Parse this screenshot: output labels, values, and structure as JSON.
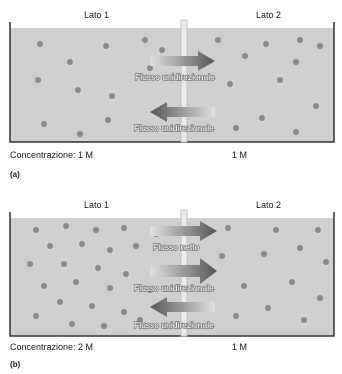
{
  "panels": [
    {
      "tag": "(a)",
      "left_label": "Lato 1",
      "right_label": "Lato 2",
      "concentration_left": "Concentrazione: 1 M",
      "concentration_right": "1 M",
      "arrows": [
        {
          "direction": "right",
          "label": "Flusso unidirezionale",
          "level": "upper"
        },
        {
          "direction": "left",
          "label": "Flusso unidirezionale",
          "level": "lower"
        }
      ]
    },
    {
      "tag": "(b)",
      "left_label": "Lato 1",
      "right_label": "Lato 2",
      "concentration_left": "Concentrazione: 2 M",
      "concentration_right": "1 M",
      "arrows": [
        {
          "direction": "right",
          "label": "Flusso netto",
          "level": "top"
        },
        {
          "direction": "right",
          "label": "Flusso unidirezionale",
          "level": "middle"
        },
        {
          "direction": "left",
          "label": "Flusso unidirezionale",
          "level": "bottom"
        }
      ]
    }
  ],
  "colors": {
    "fluid": "#cfcfcf",
    "particle": "#8a8a8a",
    "membrane": "#e8e8e8",
    "arrow_dark": "#5a5a5a",
    "arrow_light": "#d9d9d9"
  }
}
